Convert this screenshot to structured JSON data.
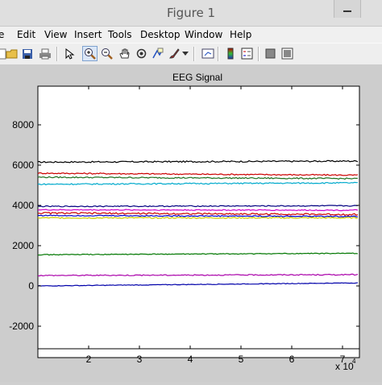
{
  "window": {
    "title": "Figure 1"
  },
  "menu": [
    "e",
    "Edit",
    "View",
    "Insert",
    "Tools",
    "Desktop",
    "Window",
    "Help"
  ],
  "toolbar": {
    "icons": [
      "new-figure-icon",
      "open-file-icon",
      "save-icon",
      "print-icon",
      "edit-plot-arrow-icon",
      "zoom-in-icon",
      "zoom-out-icon",
      "pan-hand-icon",
      "rotate-3d-icon",
      "data-cursor-icon",
      "brush-icon",
      "brush-dropdown-icon",
      "link-plot-icon",
      "colorbar-icon",
      "legend-icon",
      "hide-plot-tools-icon",
      "show-plot-tools-icon"
    ]
  },
  "colors": {
    "figure_bg": "#cdcdcd",
    "axes_bg": "#ffffff",
    "active_tool": "#dbe7f7"
  },
  "chart_data": {
    "type": "line",
    "title": "EEG Signal",
    "xlabel": "",
    "ylabel": "",
    "x_exponent_label": "x 10",
    "x_exponent_power": "4",
    "xlim": [
      1.0,
      7.3
    ],
    "ylim": [
      -2700,
      9800
    ],
    "x_ticks": [
      2,
      3,
      4,
      5,
      6,
      7
    ],
    "y_ticks": [
      -2000,
      0,
      2000,
      4000,
      6000,
      8000
    ],
    "grid": false,
    "series": [
      {
        "color": "#000000",
        "start": 6150,
        "end": 6200,
        "noise": 35
      },
      {
        "color": "#cc0000",
        "start": 5600,
        "end": 5500,
        "noise": 30
      },
      {
        "color": "#207020",
        "start": 5400,
        "end": 5330,
        "noise": 30
      },
      {
        "color": "#00aacc",
        "start": 5050,
        "end": 5120,
        "noise": 30
      },
      {
        "color": "#000080",
        "start": 3950,
        "end": 3980,
        "noise": 25
      },
      {
        "color": "#cc00cc",
        "start": 3780,
        "end": 3760,
        "noise": 25
      },
      {
        "color": "#cc0000",
        "start": 3620,
        "end": 3550,
        "noise": 40
      },
      {
        "color": "#0000cc",
        "start": 3500,
        "end": 3450,
        "noise": 25
      },
      {
        "color": "#cccc00",
        "start": 3380,
        "end": 3380,
        "noise": 30
      },
      {
        "color": "#007700",
        "start": 1550,
        "end": 1620,
        "noise": 20
      },
      {
        "color": "#aa00aa",
        "start": 520,
        "end": 560,
        "noise": 25
      },
      {
        "color": "#0000aa",
        "start": 0,
        "end": 150,
        "noise": 15
      }
    ]
  }
}
